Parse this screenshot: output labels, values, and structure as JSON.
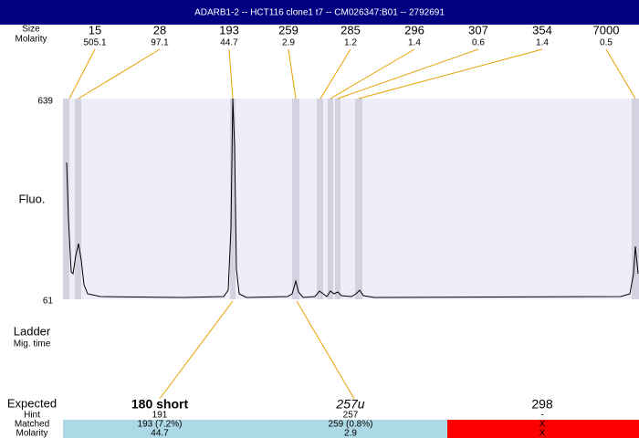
{
  "header": {
    "title": "ADARB1-2 -- HCT116 clone1 t7 -- CM026347:B01 -- 2792691"
  },
  "labels": {
    "size": "Size",
    "molarity": "Molarity",
    "fluo": "Fluo.",
    "ladder": "Ladder",
    "mig_time": "Mig. time",
    "expected": "Expected",
    "hint": "Hint",
    "matched": "Matched",
    "molarity_bottom": "Molarity"
  },
  "peaks": [
    {
      "size": 15,
      "molarity": 505.1
    },
    {
      "size": 28,
      "molarity": 97.1
    },
    {
      "size": 193,
      "molarity": 44.7
    },
    {
      "size": 259,
      "molarity": 2.9
    },
    {
      "size": 285,
      "molarity": 1.2
    },
    {
      "size": 296,
      "molarity": 1.4
    },
    {
      "size": 307,
      "molarity": 0.6
    },
    {
      "size": 354,
      "molarity": 1.4
    },
    {
      "size": 7000,
      "molarity": 0.5
    }
  ],
  "fluo_axis": {
    "top": 639,
    "bottom": 61
  },
  "expected": [
    {
      "expected": "180 short",
      "hint": "191",
      "matched": "193 (7.2%)",
      "molarity": "44.7"
    },
    {
      "expected": "257u",
      "hint": "257",
      "matched": "259 (0.8%)",
      "molarity": "2.9"
    },
    {
      "expected": "298",
      "hint": "-",
      "matched": "X",
      "molarity": "X"
    }
  ]
}
